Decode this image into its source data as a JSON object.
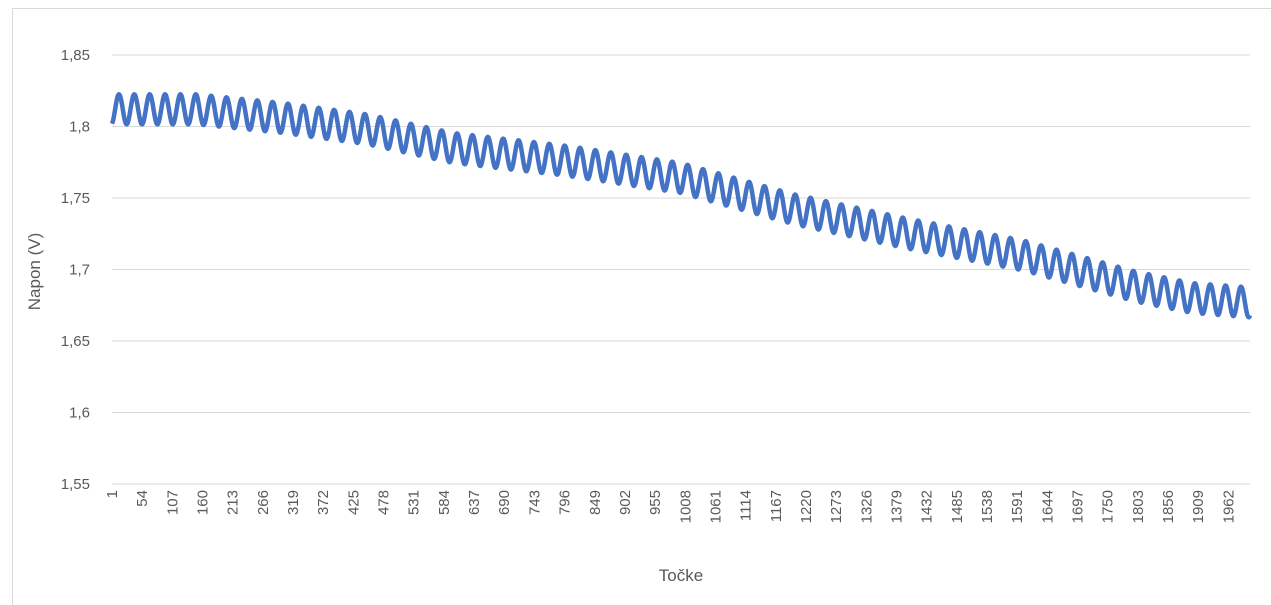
{
  "chart_data": {
    "type": "line",
    "title": "",
    "xlabel": "Točke",
    "ylabel": "Napon (V)",
    "ylim": [
      1.55,
      1.85
    ],
    "y_ticks": [
      "1,55",
      "1,6",
      "1,65",
      "1,7",
      "1,75",
      "1,8",
      "1,85"
    ],
    "x_range": [
      1,
      2000
    ],
    "x_ticks": [
      "1",
      "54",
      "107",
      "160",
      "213",
      "266",
      "319",
      "372",
      "425",
      "478",
      "531",
      "584",
      "637",
      "690",
      "743",
      "796",
      "849",
      "902",
      "955",
      "1008",
      "1061",
      "1114",
      "1167",
      "1220",
      "1273",
      "1326",
      "1379",
      "1432",
      "1485",
      "1538",
      "1591",
      "1644",
      "1697",
      "1750",
      "1803",
      "1856",
      "1909",
      "1962"
    ],
    "grid": "horizontal",
    "legend": "none",
    "series": [
      {
        "color": "#4472c4",
        "trend_x": [
          1,
          150,
          300,
          450,
          600,
          800,
          1000,
          1200,
          1400,
          1600,
          1800,
          1900,
          2000
        ],
        "trend_y": [
          1.812,
          1.812,
          1.806,
          1.798,
          1.785,
          1.776,
          1.764,
          1.742,
          1.725,
          1.71,
          1.688,
          1.68,
          1.677
        ],
        "oscillation_amplitude": 0.0105,
        "oscillation_period": 27
      }
    ]
  }
}
